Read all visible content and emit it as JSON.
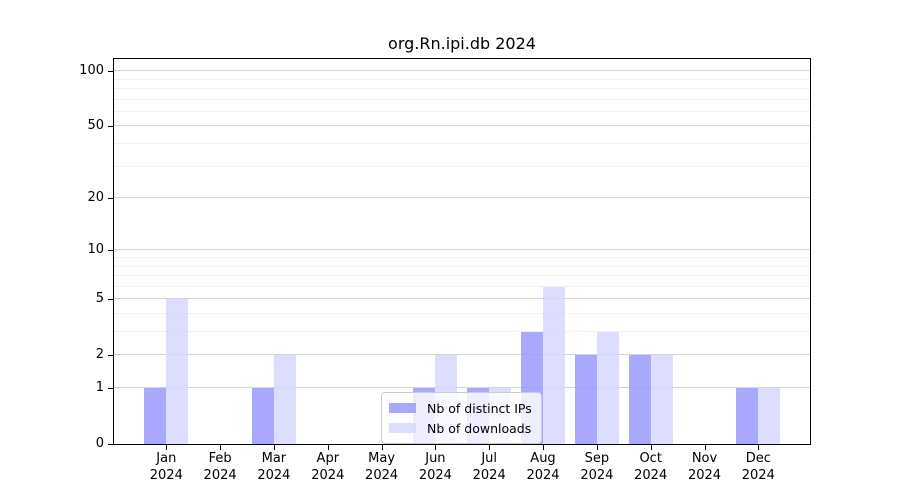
{
  "chart_data": {
    "type": "bar",
    "title": "org.Rn.ipi.db 2024",
    "x": {
      "months": [
        "Jan",
        "Feb",
        "Mar",
        "Apr",
        "May",
        "Jun",
        "Jul",
        "Aug",
        "Sep",
        "Oct",
        "Nov",
        "Dec"
      ],
      "year": "2024"
    },
    "categories": [
      "Jan 2024",
      "Feb 2024",
      "Mar 2024",
      "Apr 2024",
      "May 2024",
      "Jun 2024",
      "Jul 2024",
      "Aug 2024",
      "Sep 2024",
      "Oct 2024",
      "Nov 2024",
      "Dec 2024"
    ],
    "series": [
      {
        "name": "Nb of distinct IPs",
        "color": "#9999ff",
        "alpha": 0.85,
        "values": [
          1,
          0,
          1,
          0,
          0,
          1,
          1,
          3,
          2,
          2,
          0,
          1
        ]
      },
      {
        "name": "Nb of downloads",
        "color": "#d4d4ff",
        "alpha": 0.8,
        "values": [
          5,
          0,
          2,
          0,
          0,
          2,
          1,
          6,
          3,
          2,
          0,
          1
        ]
      }
    ],
    "yscale": "log1p",
    "yticks": [
      0,
      1,
      2,
      5,
      10,
      20,
      50,
      100
    ],
    "yticks_minor": [
      3,
      4,
      6,
      7,
      8,
      9,
      30,
      40,
      60,
      70,
      80,
      90
    ],
    "ylim": [
      0,
      117
    ],
    "grid": true,
    "legend": {
      "position": "bottom-center",
      "entries": [
        "Nb of distinct IPs",
        "Nb of downloads"
      ]
    }
  },
  "colors": {
    "grid_major": "#d4d4d4",
    "grid_minor": "#f0f0f0",
    "spine": "#000000",
    "legend_border": "#cccccc",
    "background": "#ffffff"
  }
}
